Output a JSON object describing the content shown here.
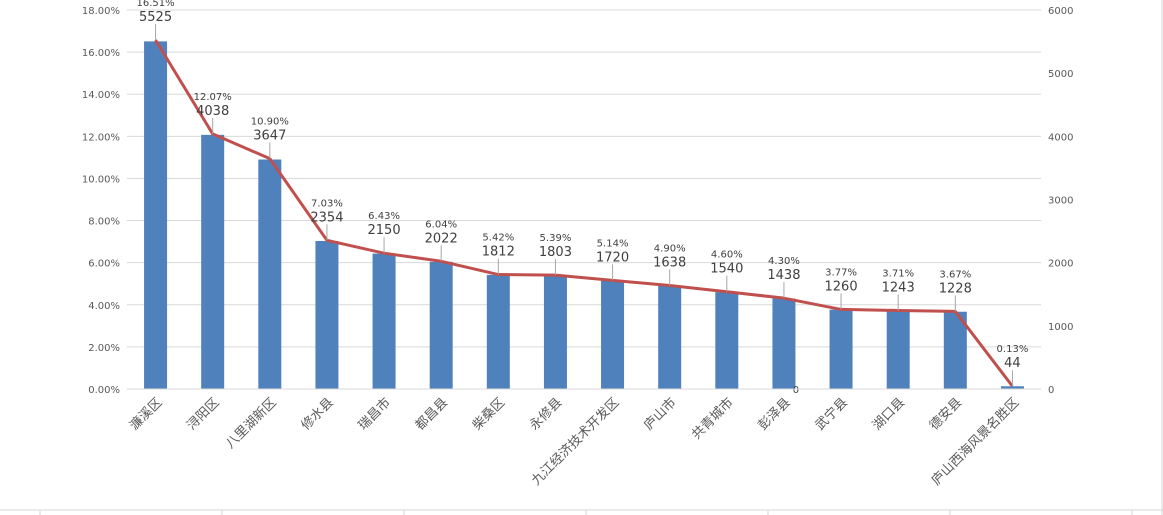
{
  "chart_data": {
    "type": "bar+line",
    "categories": [
      "濂溪区",
      "浔阳区",
      "八里湖新区",
      "修水县",
      "瑞昌市",
      "都昌县",
      "柴桑区",
      "永修县",
      "九江经济技术开发区",
      "庐山市",
      "共青城市",
      "彭泽县",
      "武宁县",
      "湖口县",
      "德安县",
      "庐山西海风景名胜区"
    ],
    "series": [
      {
        "name": "percent",
        "type": "bar",
        "axis": "left",
        "color": "#4f81bd",
        "values": [
          16.51,
          12.07,
          10.9,
          7.03,
          6.43,
          6.04,
          5.42,
          5.39,
          5.14,
          4.9,
          4.6,
          4.3,
          3.77,
          3.71,
          3.67,
          0.13
        ],
        "labels": [
          "16.51%",
          "12.07%",
          "10.90%",
          "7.03%",
          "6.43%",
          "6.04%",
          "5.42%",
          "5.39%",
          "5.14%",
          "4.90%",
          "4.60%",
          "4.30%",
          "3.77%",
          "3.71%",
          "3.67%",
          "0.13%"
        ]
      },
      {
        "name": "count",
        "type": "line",
        "axis": "right",
        "color": "#c0504d",
        "values": [
          5525,
          4038,
          3647,
          2354,
          2150,
          2022,
          1812,
          1803,
          1720,
          1638,
          1540,
          1438,
          1260,
          1243,
          1228,
          44
        ],
        "labels": [
          "5525",
          "4038",
          "3647",
          "2354",
          "2150",
          "2022",
          "1812",
          "1803",
          "1720",
          "1638",
          "1540",
          "1438",
          "1260",
          "1243",
          "1228",
          "44"
        ]
      }
    ],
    "ylim_left": [
      0,
      18
    ],
    "ylim_right": [
      0,
      6000
    ],
    "left_ticks": [
      "0.00%",
      "2.00%",
      "4.00%",
      "6.00%",
      "8.00%",
      "10.00%",
      "12.00%",
      "14.00%",
      "16.00%",
      "18.00%"
    ],
    "right_ticks": [
      "0",
      "1000",
      "2000",
      "3000",
      "4000",
      "5000",
      "6000"
    ],
    "stray_label": "0",
    "grid": true,
    "legend": "none"
  }
}
